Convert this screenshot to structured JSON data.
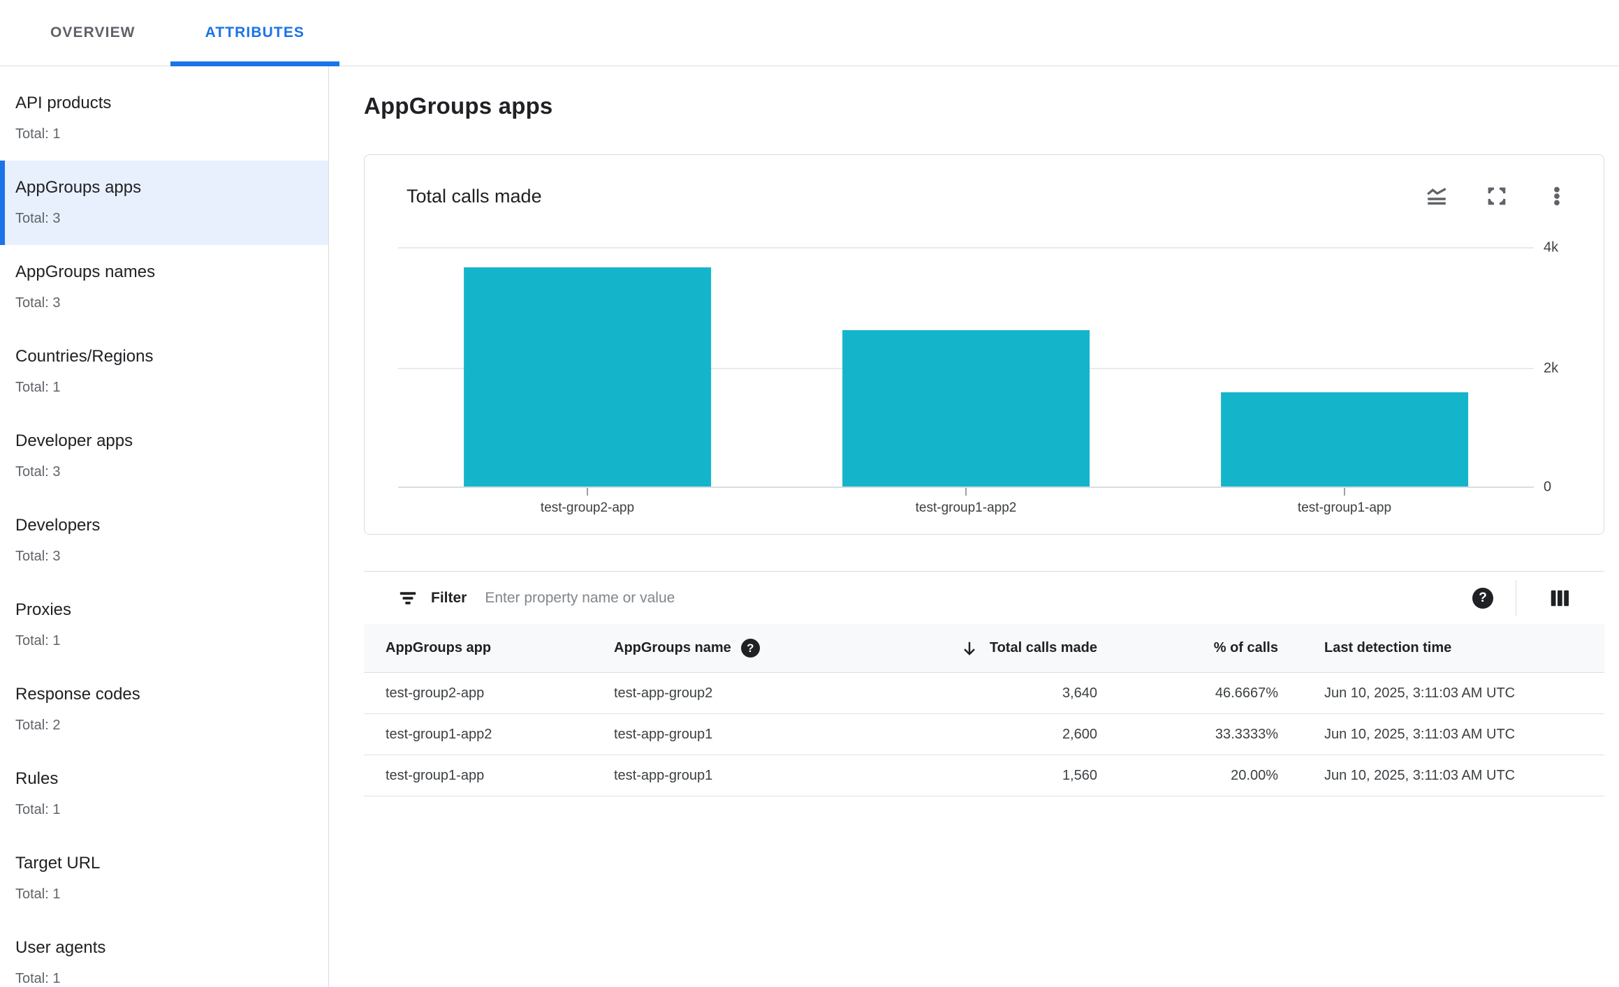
{
  "tabs": {
    "items": [
      {
        "label": "OVERVIEW",
        "active": false
      },
      {
        "label": "ATTRIBUTES",
        "active": true
      }
    ]
  },
  "sidebar": {
    "items": [
      {
        "label": "API products",
        "total": "Total: 1",
        "selected": false
      },
      {
        "label": "AppGroups apps",
        "total": "Total: 3",
        "selected": true
      },
      {
        "label": "AppGroups names",
        "total": "Total: 3",
        "selected": false
      },
      {
        "label": "Countries/Regions",
        "total": "Total: 1",
        "selected": false
      },
      {
        "label": "Developer apps",
        "total": "Total: 3",
        "selected": false
      },
      {
        "label": "Developers",
        "total": "Total: 3",
        "selected": false
      },
      {
        "label": "Proxies",
        "total": "Total: 1",
        "selected": false
      },
      {
        "label": "Response codes",
        "total": "Total: 2",
        "selected": false
      },
      {
        "label": "Rules",
        "total": "Total: 1",
        "selected": false
      },
      {
        "label": "Target URL",
        "total": "Total: 1",
        "selected": false
      },
      {
        "label": "User agents",
        "total": "Total: 1",
        "selected": false
      }
    ]
  },
  "page": {
    "title": "AppGroups apps"
  },
  "card": {
    "title": "Total calls made",
    "action_icons": [
      "area-chart-icon",
      "fullscreen-icon",
      "more-vert-icon"
    ]
  },
  "chart_data": {
    "type": "bar",
    "title": "Total calls made",
    "categories": [
      "test-group2-app",
      "test-group1-app2",
      "test-group1-app"
    ],
    "values": [
      3640,
      2600,
      1560
    ],
    "xlabel": "",
    "ylabel": "",
    "ylim": [
      0,
      4000
    ],
    "yticks": [
      {
        "label": "4k",
        "value": 4000
      },
      {
        "label": "2k",
        "value": 2000
      },
      {
        "label": "0",
        "value": 0
      }
    ],
    "y_axis_side": "right",
    "grid": true,
    "legend": false,
    "bar_color": "#14b5cb"
  },
  "filter": {
    "label": "Filter",
    "placeholder": "Enter property name or value",
    "value": "",
    "icons": [
      "filter-list-icon",
      "help-icon",
      "view-columns-icon"
    ]
  },
  "table": {
    "columns": [
      {
        "label": "AppGroups app"
      },
      {
        "label": "AppGroups name",
        "help_icon": true
      },
      {
        "label": "Total calls made",
        "sorted": "desc",
        "align": "right"
      },
      {
        "label": "% of calls",
        "align": "right"
      },
      {
        "label": "Last detection time"
      }
    ],
    "rows": [
      [
        "test-group2-app",
        "test-app-group2",
        "3,640",
        "46.6667%",
        "Jun 10, 2025, 3:11:03 AM UTC"
      ],
      [
        "test-group1-app2",
        "test-app-group1",
        "2,600",
        "33.3333%",
        "Jun 10, 2025, 3:11:03 AM UTC"
      ],
      [
        "test-group1-app",
        "test-app-group1",
        "1,560",
        "20.00%",
        "Jun 10, 2025, 3:11:03 AM UTC"
      ]
    ]
  },
  "colors": {
    "accent_blue": "#1a73e8",
    "bar_teal": "#14b5cb",
    "selected_item_bg": "#e8f0fe",
    "hairline": "#dadce0",
    "table_header_bg": "#f8f9fa",
    "text_primary": "#202124",
    "text_secondary": "#5f6368"
  }
}
